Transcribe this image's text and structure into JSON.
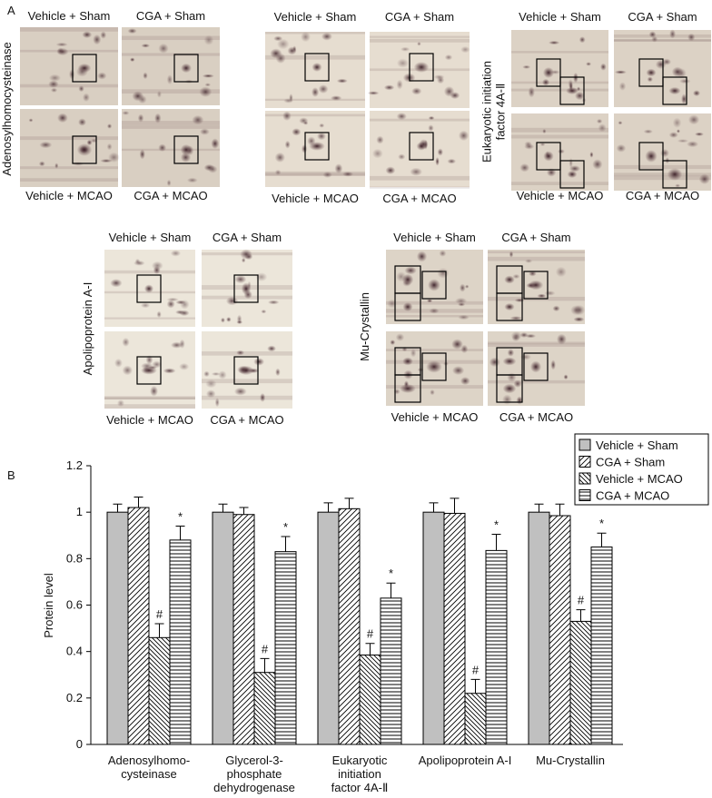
{
  "panel_a": {
    "label": "A",
    "blots": [
      {
        "protein": "Adenosylhomocysteinase",
        "top": [
          "Vehicle + Sham",
          "CGA + Sham"
        ],
        "bottom": [
          "Vehicle + MCAO",
          "CGA + MCAO"
        ]
      },
      {
        "top": [
          "Vehicle + Sham",
          "CGA + Sham"
        ],
        "bottom": [
          "Vehicle + MCAO",
          "CGA + MCAO"
        ]
      },
      {
        "protein": "Eukaryotic initiation\nfactor 4A-Ⅱ",
        "top": [
          "Vehicle + Sham",
          "CGA + Sham"
        ],
        "bottom": [
          "Vehicle + MCAO",
          "CGA + MCAO"
        ]
      },
      {
        "protein": "Apolipoprotein A-I",
        "top": [
          "Vehicle + Sham",
          "CGA + Sham"
        ],
        "bottom": [
          "Vehicle + MCAO",
          "CGA + MCAO"
        ]
      },
      {
        "protein": "Mu-Crystallin",
        "top": [
          "Vehicle + Sham",
          "CGA + Sham"
        ],
        "bottom": [
          "Vehicle + MCAO",
          "CGA + MCAO"
        ]
      }
    ]
  },
  "panel_b": {
    "label": "B"
  },
  "chart_data": {
    "type": "bar",
    "ylabel": "Protein level",
    "categories": [
      "Adenosylhomo-\ncysteinase",
      "Glycerol-3-\nphosphate\ndehydrogenase",
      "Eukaryotic\ninitiation\nfactor 4A-Ⅱ",
      "Apolipoprotein A-I",
      "Mu-Crystallin"
    ],
    "series": [
      {
        "name": "Vehicle + Sham",
        "color": "#c0c0c0",
        "pattern": "solid",
        "values": [
          1,
          1,
          1,
          1,
          1
        ],
        "errors": [
          0.035,
          0.035,
          0.04,
          0.04,
          0.035
        ]
      },
      {
        "name": "CGA + Sham",
        "color": "#000000",
        "pattern": "diagonal",
        "values": [
          1.02,
          0.99,
          1.015,
          0.995,
          0.985
        ],
        "errors": [
          0.045,
          0.03,
          0.045,
          0.065,
          0.05
        ]
      },
      {
        "name": "Vehicle + MCAO",
        "color": "#000000",
        "pattern": "back-diagonal",
        "values": [
          0.46,
          0.31,
          0.385,
          0.22,
          0.53
        ],
        "errors": [
          0.06,
          0.06,
          0.05,
          0.06,
          0.05
        ],
        "annotation": "#"
      },
      {
        "name": "CGA + MCAO",
        "color": "#000000",
        "pattern": "horizontal",
        "values": [
          0.88,
          0.83,
          0.63,
          0.835,
          0.85
        ],
        "errors": [
          0.06,
          0.065,
          0.065,
          0.07,
          0.06
        ],
        "annotation": "*"
      }
    ],
    "ylim": [
      0,
      1.2
    ],
    "yticks": [
      0,
      0.2,
      0.4,
      0.6,
      0.8,
      1,
      1.2
    ],
    "legend": "top-right"
  }
}
